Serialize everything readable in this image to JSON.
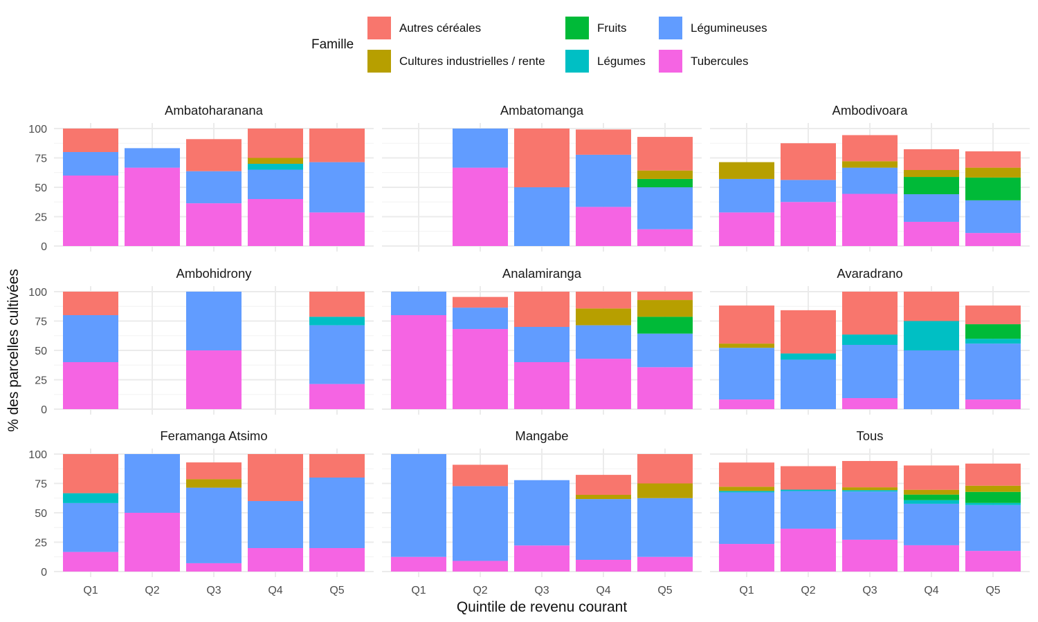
{
  "chart_data": {
    "type": "bar",
    "stacked": true,
    "facets_layout": "3x3 grid",
    "xlabel": "Quintile de revenu courant",
    "ylabel": "% des parcelles cultivées",
    "ylim": [
      0,
      100
    ],
    "yticks": [
      0,
      25,
      50,
      75,
      100
    ],
    "grid": true,
    "categories": [
      "Q1",
      "Q2",
      "Q3",
      "Q4",
      "Q5"
    ],
    "legend": {
      "title": "Famille",
      "placement": "top",
      "entries": [
        {
          "name": "Autres céréales",
          "color": "#F8766D"
        },
        {
          "name": "Cultures industrielles / rente",
          "color": "#B79F00"
        },
        {
          "name": "Fruits",
          "color": "#00BA38"
        },
        {
          "name": "Légumes",
          "color": "#00BFC4"
        },
        {
          "name": "Légumineuses",
          "color": "#619CFF"
        },
        {
          "name": "Tubercules",
          "color": "#F564E3"
        }
      ]
    },
    "stack_order_bottom_to_top": [
      "Tubercules",
      "Légumineuses",
      "Légumes",
      "Fruits",
      "Cultures industrielles / rente",
      "Autres céréales"
    ],
    "panels": [
      {
        "title": "Ambatoharanana",
        "bars": [
          {
            "Tubercules": 60,
            "Légumineuses": 20,
            "Autres céréales": 20
          },
          {
            "Tubercules": 66.7,
            "Légumineuses": 16.6
          },
          {
            "Tubercules": 36.4,
            "Légumineuses": 27.3,
            "Autres céréales": 27.3
          },
          {
            "Tubercules": 40,
            "Légumineuses": 25,
            "Légumes": 5,
            "Cultures industrielles / rente": 5,
            "Autres céréales": 25
          },
          {
            "Tubercules": 28.6,
            "Légumineuses": 42.8,
            "Autres céréales": 28.6
          }
        ]
      },
      {
        "title": "Ambatomanga",
        "bars": [
          {},
          {
            "Tubercules": 66.7,
            "Légumineuses": 33.3
          },
          {
            "Légumineuses": 50,
            "Autres céréales": 50
          },
          {
            "Tubercules": 33.3,
            "Légumineuses": 44.4,
            "Autres céréales": 21.5
          },
          {
            "Tubercules": 14.3,
            "Légumineuses": 35.7,
            "Fruits": 7.1,
            "Cultures industrielles / rente": 7.2,
            "Autres céréales": 28.6
          }
        ]
      },
      {
        "title": "Ambodivoara",
        "bars": [
          {
            "Tubercules": 28.6,
            "Légumineuses": 28.5,
            "Cultures industrielles / rente": 14.3
          },
          {
            "Tubercules": 37.5,
            "Légumineuses": 18.75,
            "Autres céréales": 31.25
          },
          {
            "Tubercules": 44.4,
            "Légumineuses": 22.3,
            "Cultures industrielles / rente": 5.5,
            "Autres céréales": 22.2
          },
          {
            "Tubercules": 20.6,
            "Légumineuses": 23.5,
            "Fruits": 14.7,
            "Cultures industrielles / rente": 5.9,
            "Autres céréales": 17.7
          },
          {
            "Tubercules": 11.1,
            "Légumineuses": 27.8,
            "Fruits": 19.4,
            "Cultures industrielles / rente": 8.4,
            "Autres céréales": 13.9
          }
        ]
      },
      {
        "title": "Ambohidrony",
        "bars": [
          {
            "Tubercules": 40,
            "Légumineuses": 40,
            "Autres céréales": 20
          },
          {},
          {
            "Tubercules": 50,
            "Légumineuses": 50
          },
          {},
          {
            "Tubercules": 21.4,
            "Légumineuses": 50,
            "Légumes": 7.2,
            "Autres céréales": 21.4
          }
        ]
      },
      {
        "title": "Analamiranga",
        "bars": [
          {
            "Tubercules": 80,
            "Légumineuses": 20
          },
          {
            "Tubercules": 68.2,
            "Légumineuses": 18.2,
            "Autres céréales": 9.1
          },
          {
            "Tubercules": 40,
            "Légumineuses": 30,
            "Autres céréales": 30
          },
          {
            "Tubercules": 42.9,
            "Légumineuses": 28.5,
            "Cultures industrielles / rente": 14.3,
            "Autres céréales": 14.3
          },
          {
            "Tubercules": 35.7,
            "Légumineuses": 28.6,
            "Fruits": 14.3,
            "Cultures industrielles / rente": 14.3,
            "Autres céréales": 7.1
          }
        ]
      },
      {
        "title": "Avaradrano",
        "bars": [
          {
            "Tubercules": 8.2,
            "Légumineuses": 44,
            "Cultures industrielles / rente": 3.6,
            "Autres céréales": 32.4
          },
          {
            "Légumineuses": 42.1,
            "Légumes": 5.3,
            "Autres céréales": 36.8
          },
          {
            "Tubercules": 9.4,
            "Légumineuses": 45.3,
            "Légumes": 8.8,
            "Autres céréales": 36.5
          },
          {
            "Légumineuses": 50,
            "Légumes": 25,
            "Autres céréales": 25
          },
          {
            "Tubercules": 8.2,
            "Légumineuses": 47.6,
            "Légumes": 4.1,
            "Fruits": 12.4,
            "Autres céréales": 15.9
          }
        ]
      },
      {
        "title": "Feramanga Atsimo",
        "bars": [
          {
            "Tubercules": 16.7,
            "Légumineuses": 41.6,
            "Légumes": 8.4,
            "Autres céréales": 33.3
          },
          {
            "Tubercules": 50,
            "Légumineuses": 50
          },
          {
            "Tubercules": 7.1,
            "Légumineuses": 64.3,
            "Cultures industrielles / rente": 7.2,
            "Autres céréales": 14.3
          },
          {
            "Tubercules": 20,
            "Légumineuses": 40,
            "Autres céréales": 40
          },
          {
            "Tubercules": 20,
            "Légumineuses": 60,
            "Autres céréales": 20
          }
        ]
      },
      {
        "title": "Mangabe",
        "bars": [
          {
            "Tubercules": 12.5,
            "Légumineuses": 87.5
          },
          {
            "Tubercules": 9.1,
            "Légumineuses": 63.6,
            "Autres céréales": 18.2
          },
          {
            "Tubercules": 22.2,
            "Légumineuses": 55.6
          },
          {
            "Tubercules": 10,
            "Légumineuses": 51.7,
            "Cultures industrielles / rente": 3.6,
            "Autres céréales": 17
          },
          {
            "Tubercules": 12.5,
            "Légumineuses": 50,
            "Cultures industrielles / rente": 12.5,
            "Autres céréales": 25
          }
        ]
      },
      {
        "title": "Tous",
        "bars": [
          {
            "Tubercules": 23.5,
            "Légumineuses": 43.9,
            "Légumes": 1.2,
            "Cultures industrielles / rente": 3.6,
            "Autres céréales": 20.6
          },
          {
            "Tubercules": 36.5,
            "Légumineuses": 32,
            "Légumes": 1.2,
            "Autres céréales": 20
          },
          {
            "Tubercules": 27.1,
            "Légumineuses": 41,
            "Légumes": 1.2,
            "Cultures industrielles / rente": 2.4,
            "Autres céréales": 22.4
          },
          {
            "Tubercules": 22.4,
            "Légumineuses": 35.3,
            "Légumes": 3.1,
            "Fruits": 4.7,
            "Cultures industrielles / rente": 4.1,
            "Autres céréales": 20.7
          },
          {
            "Tubercules": 17.6,
            "Légumineuses": 39,
            "Légumes": 1.8,
            "Fruits": 9.4,
            "Cultures industrielles / rente": 5.3,
            "Autres céréales": 18.8
          }
        ]
      }
    ]
  }
}
